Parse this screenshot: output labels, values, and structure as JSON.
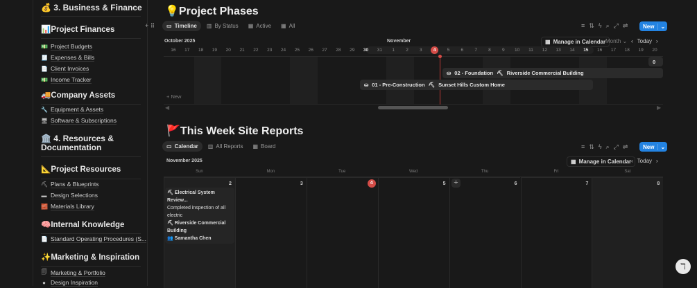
{
  "sidebar": {
    "business": "💰 3. Business & Finance",
    "finances": "📊Project Finances",
    "finance_items": [
      {
        "icon": "💵",
        "label": "Project Budgets"
      },
      {
        "icon": "🧾",
        "label": "Expenses & Bills"
      },
      {
        "icon": "📄",
        "label": "Client Invoices"
      },
      {
        "icon": "💵",
        "label": "Income Tracker"
      }
    ],
    "assets": "🚚Company Assets",
    "asset_items": [
      {
        "icon": "🔧",
        "label": "Equipment & Assets"
      },
      {
        "icon": "🖥",
        "label": "Software & Subscriptions"
      }
    ],
    "resources": "🏛️ 4. Resources & Documentation",
    "project_resources": "📐Project Resources",
    "resource_items": [
      {
        "icon": "⛏",
        "label": "Plans & Blueprints"
      },
      {
        "icon": "▬",
        "label": "Design Selections"
      },
      {
        "icon": "🧱",
        "label": "Materials Library"
      }
    ],
    "knowledge": "🧠Internal Knowledge",
    "knowledge_items": [
      {
        "icon": "📄",
        "label": "Standard Operating Procedures (S..."
      }
    ],
    "marketing": "✨Marketing & Inspiration",
    "marketing_items": [
      {
        "icon": "🗐",
        "label": "Marketing & Portfolio"
      },
      {
        "icon": "●",
        "label": "Design Inspiration"
      }
    ]
  },
  "phases": {
    "title": "💡Project Phases",
    "tabs": [
      "Timeline",
      "By Status",
      "Active",
      "All"
    ],
    "new": "New",
    "manage": "Manage in Calendar",
    "scale": "Month",
    "today": "Today",
    "month_left": "October 2025",
    "month_right": "November",
    "days": [
      "16",
      "17",
      "18",
      "19",
      "20",
      "21",
      "22",
      "23",
      "24",
      "25",
      "26",
      "27",
      "28",
      "29",
      "30",
      "31",
      "1",
      "2",
      "3",
      "4",
      "5",
      "6",
      "7",
      "8",
      "9",
      "10",
      "11",
      "12",
      "13",
      "14",
      "15",
      "16",
      "17",
      "18",
      "19",
      "20"
    ],
    "today_day": "4",
    "add_new": "New",
    "bars": [
      {
        "phase": "02 - Foundation",
        "project": "Riverside Commercial Building"
      },
      {
        "phase": "01 - Pre-Construction",
        "project": "Sunset Hills Custom Home"
      }
    ],
    "clip_label": "0"
  },
  "reports": {
    "title": "🚩This Week Site Reports",
    "tabs": [
      "Calendar",
      "All Reports",
      "Board"
    ],
    "new": "New",
    "manage": "Manage in Calendar",
    "today": "Today",
    "month": "November 2025",
    "weekdays": [
      "Sun",
      "Mon",
      "Tue",
      "Wed",
      "Thu",
      "Fri",
      "Sat"
    ],
    "dates": [
      "2",
      "3",
      "4",
      "5",
      "6",
      "7",
      "8"
    ],
    "today_date": "4",
    "event": {
      "title": "Electrical System Review...",
      "desc": "Completed inspection of all electric",
      "project": "Riverside Commercial Building",
      "person": "Samantha Chen"
    }
  },
  "colors": {
    "accent": "#2383e2",
    "today": "#d44c47",
    "bg": "#191919"
  }
}
